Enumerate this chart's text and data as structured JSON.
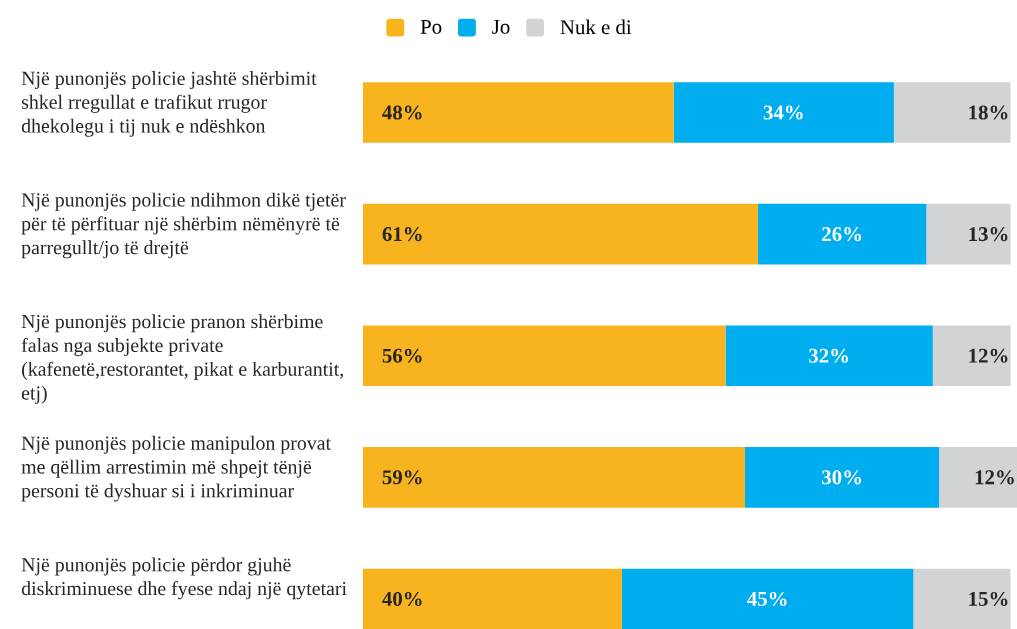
{
  "chart_data": {
    "type": "bar",
    "orientation": "horizontal",
    "stacked": true,
    "categories": [
      "Një punonjës policie jashtë shërbimit shkel rregullat e trafikut rrugor dhekolegu i tij nuk e ndëshkon",
      "Një punonjës policie ndihmon dikë tjetër për të përfituar një shërbim nëmënyrë të parregullt/jo të drejtë",
      "Një punonjës policie pranon shërbime falas nga subjekte private (kafenetë,restorantet, pikat e karburantit, etj)",
      "Një punonjës policie manipulon provat me qëllim arrestimin më shpejt tënjë personi të dyshuar si i inkriminuar",
      "Një punonjës policie përdor gjuhë diskriminuese dhe fyese ndaj një qytetari"
    ],
    "series": [
      {
        "name": "Po",
        "color": "#f7b41e",
        "values": [
          48,
          61,
          56,
          59,
          40
        ],
        "value_labels": [
          "48%",
          "61%",
          "56%",
          "59%",
          "40%"
        ]
      },
      {
        "name": "Jo",
        "color": "#00aeef",
        "values": [
          34,
          26,
          32,
          30,
          45
        ],
        "value_labels": [
          "34%",
          "26%",
          "32%",
          "30%",
          "45%"
        ]
      },
      {
        "name": "Nuk e di",
        "color": "#d1d3d4",
        "values": [
          18,
          13,
          12,
          12,
          15
        ],
        "value_labels": [
          "18%",
          "13%",
          "12%",
          "12%",
          "15%"
        ]
      }
    ],
    "tick_labels": "y",
    "legend": "top"
  }
}
